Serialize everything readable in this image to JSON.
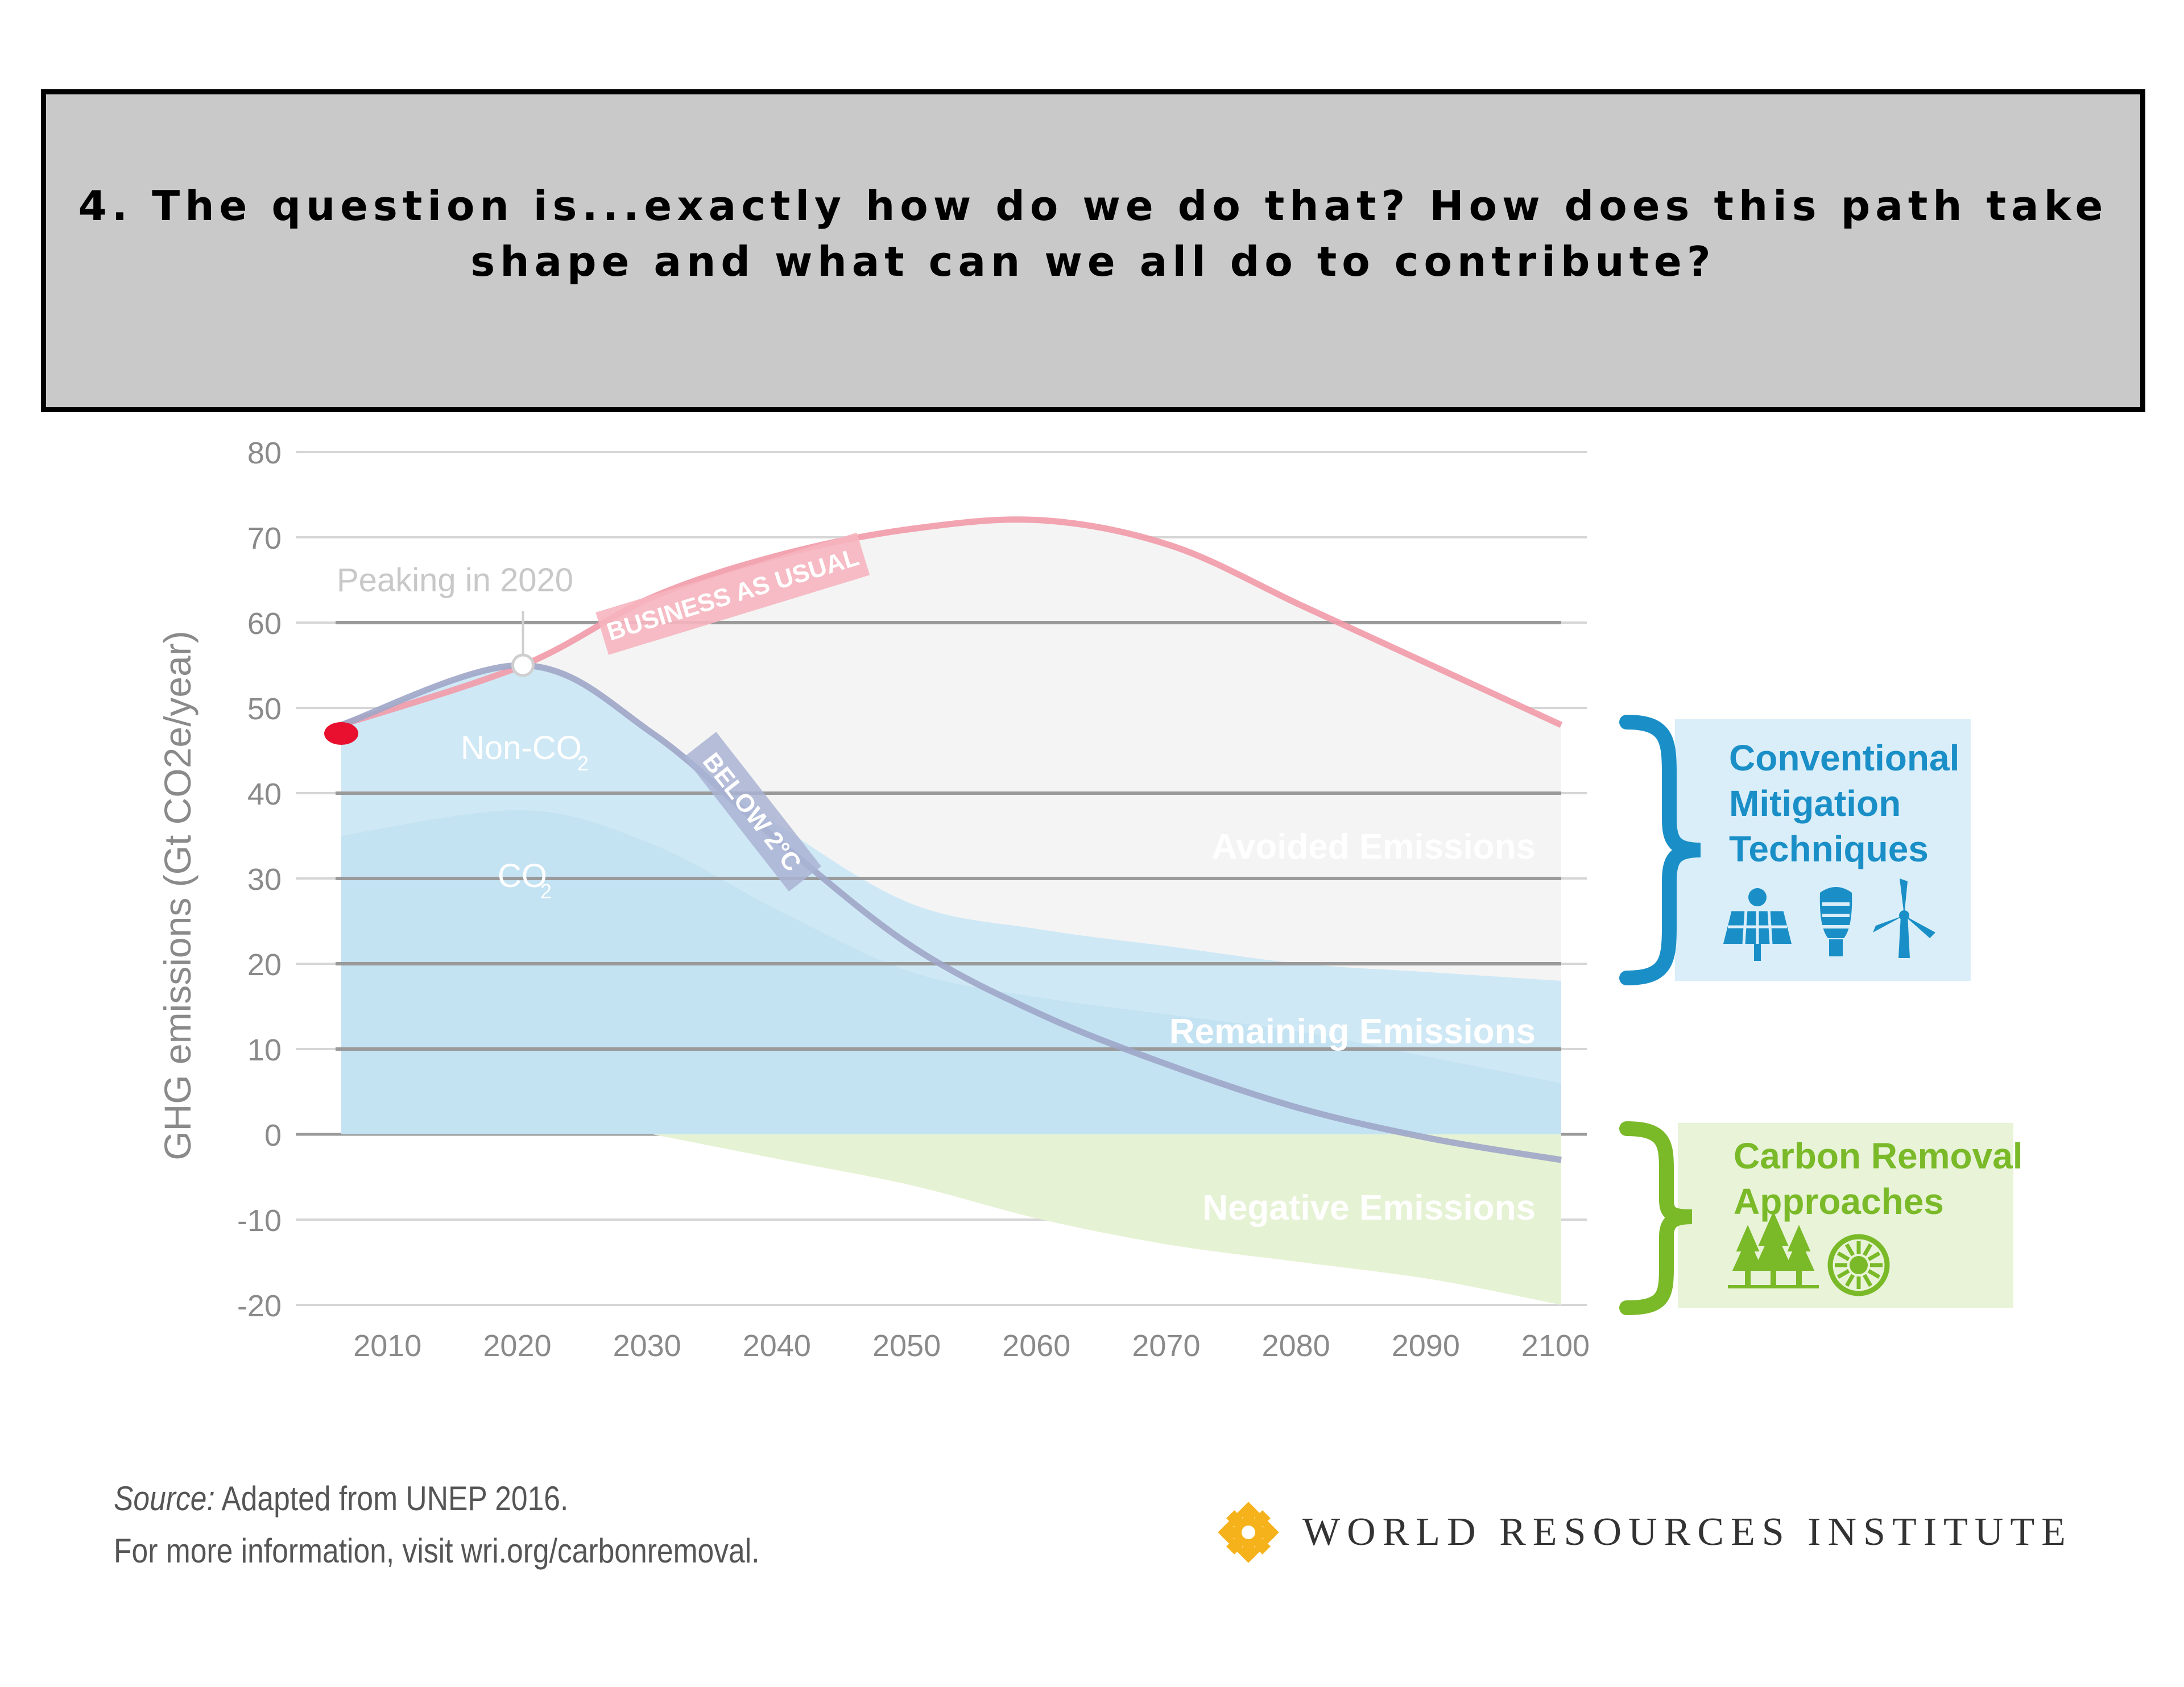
{
  "question": {
    "line1": "4. The question is...exactly how do we do that?  How does this path take",
    "line2": "shape and what can we all do to contribute?"
  },
  "chart_data": {
    "type": "area",
    "ylabel": "GHG emissions (Gt CO2e/year)",
    "ylim": [
      -20,
      80
    ],
    "yticks": [
      80,
      70,
      60,
      50,
      40,
      30,
      20,
      10,
      0,
      -10,
      -20
    ],
    "xlim": [
      2006,
      2100
    ],
    "xticks": [
      2010,
      2020,
      2030,
      2040,
      2050,
      2060,
      2070,
      2080,
      2090,
      2100
    ],
    "grid": true,
    "series": [
      {
        "name": "BUSINESS AS USUAL",
        "x": [
          2006,
          2020,
          2030,
          2040,
          2050,
          2060,
          2070,
          2080,
          2090,
          2100
        ],
        "y": [
          48,
          55,
          63,
          68,
          71,
          72,
          69,
          62,
          55,
          48
        ]
      },
      {
        "name": "BELOW 2°C",
        "x": [
          2006,
          2020,
          2030,
          2040,
          2050,
          2060,
          2070,
          2080,
          2090,
          2100
        ],
        "y": [
          48,
          55,
          47,
          34,
          22,
          14,
          8,
          3,
          -0.5,
          -3
        ]
      },
      {
        "name": "Remaining Emissions",
        "x": [
          2006,
          2020,
          2030,
          2040,
          2050,
          2060,
          2070,
          2080,
          2090,
          2100
        ],
        "y": [
          48,
          55,
          47,
          36,
          27,
          24,
          22,
          20,
          19,
          18
        ]
      },
      {
        "name": "Negative Emissions",
        "x": [
          2006,
          2030,
          2040,
          2050,
          2060,
          2070,
          2080,
          2090,
          2100
        ],
        "y": [
          0,
          0,
          -3,
          -6,
          -10,
          -13,
          -15,
          -17,
          -20
        ]
      }
    ],
    "annotations": {
      "peaking": "Peaking in 2020",
      "bau": "BUSINESS AS USUAL",
      "below2": "BELOW 2°C",
      "nonco2": "Non-CO",
      "nonco2_sub": "2",
      "co2": "CO",
      "co2_sub": "2",
      "avoided": "Avoided Emissions",
      "remaining": "Remaining Emissions",
      "negative": "Negative Emissions"
    },
    "callouts": {
      "conventional": [
        "Conventional",
        "Mitigation",
        "Techniques"
      ],
      "carbon_removal": [
        "Carbon Removal",
        "Approaches"
      ]
    },
    "colors": {
      "bau": "#f29aa8",
      "below2": "#9fa6c8",
      "remaining": "#cfe8f5",
      "avoided": "#f4f4f4",
      "negative": "#e6f2d4",
      "conventional": "#1a8fc7",
      "carbon": "#7ab928",
      "marker": "#e8102e"
    }
  },
  "source": {
    "label": "Source:",
    "text": " Adapted from UNEP 2016.",
    "line2": "For more information, visit wri.org/carbonremoval."
  },
  "logo": {
    "name": "WORLD RESOURCES INSTITUTE",
    "color": "#f5b21b"
  }
}
